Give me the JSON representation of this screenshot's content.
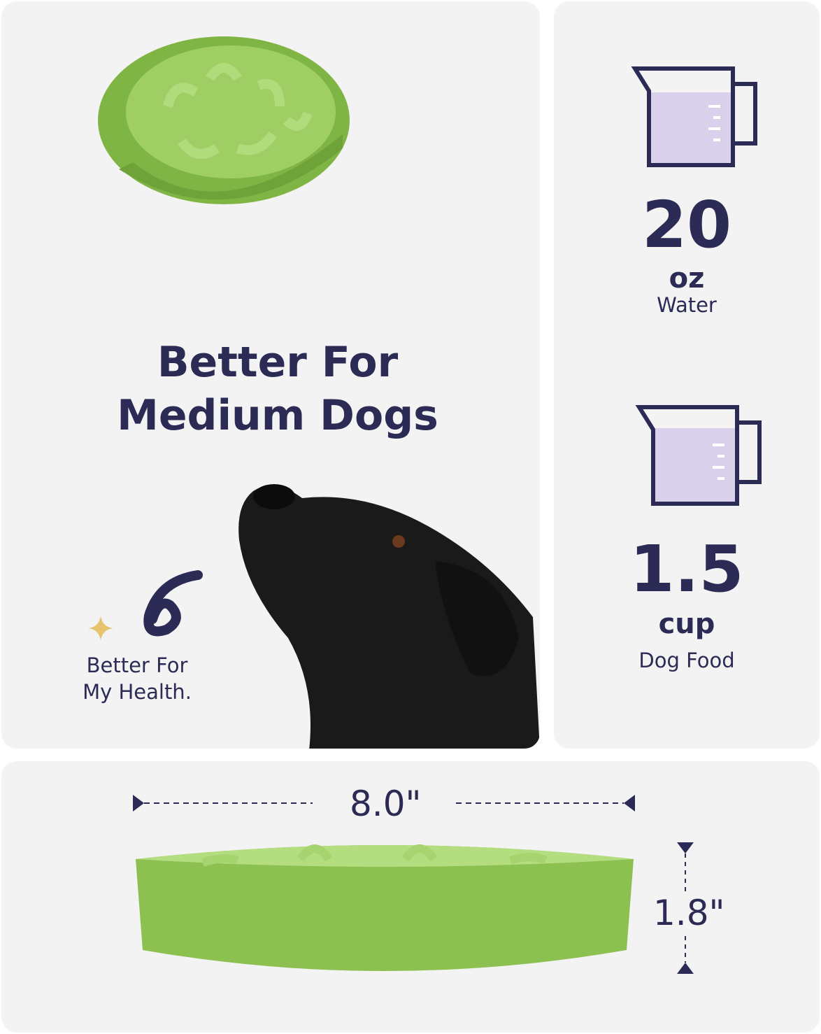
{
  "headline": {
    "line1": "Better For",
    "line2": "Medium Dogs"
  },
  "badge": {
    "line1": "Better For",
    "line2": "My Health."
  },
  "water": {
    "amount": "20",
    "unit": "oz",
    "label": "Water"
  },
  "food": {
    "amount": "1.5",
    "unit": "cup",
    "label": "Dog Food"
  },
  "dimensions": {
    "width": "8.0\"",
    "height": "1.8\""
  },
  "colors": {
    "text": "#2b2b55",
    "bowl": "#8cc152",
    "liquid": "#d9d0ec",
    "sparkle": "#e8c36e",
    "panel": "#f4f3f3"
  }
}
